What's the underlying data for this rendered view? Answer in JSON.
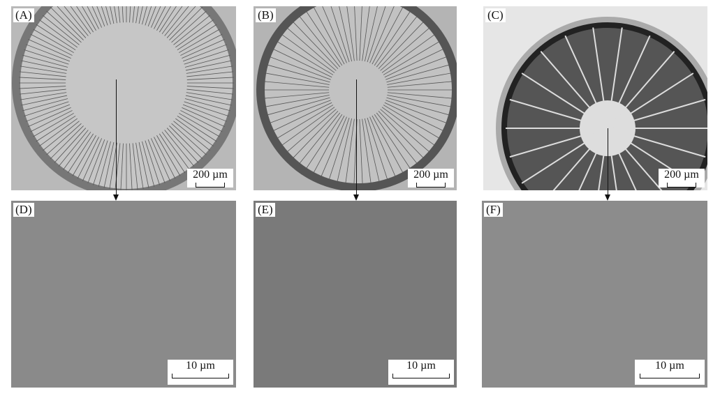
{
  "panels": [
    {
      "label": "(A)",
      "scale": "200 µm"
    },
    {
      "label": "(B)",
      "scale": "200 µm"
    },
    {
      "label": "(C)",
      "scale": "200 µm"
    },
    {
      "label": "(D)",
      "scale": "10 µm"
    },
    {
      "label": "(E)",
      "scale": "10 µm"
    },
    {
      "label": "(F)",
      "scale": "10 µm"
    }
  ]
}
